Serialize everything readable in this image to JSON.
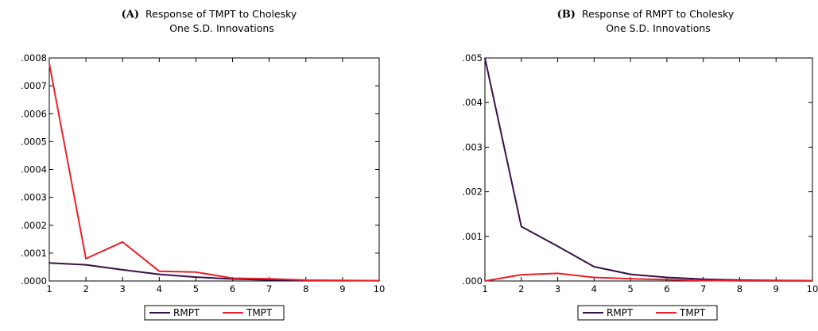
{
  "chart_data": [
    {
      "type": "line",
      "panel_label": "(A)",
      "title_line1": "Response of TMPT to Cholesky",
      "title_line2": "One S.D. Innovations",
      "x": [
        1,
        2,
        3,
        4,
        5,
        6,
        7,
        8,
        9,
        10
      ],
      "x_ticks": [
        "1",
        "2",
        "3",
        "4",
        "5",
        "6",
        "7",
        "8",
        "9",
        "10"
      ],
      "ylim": [
        0,
        0.0008
      ],
      "y_ticks": [
        ".0000",
        ".0001",
        ".0002",
        ".0003",
        ".0004",
        ".0005",
        ".0006",
        ".0007",
        ".0008"
      ],
      "series": [
        {
          "name": "RMPT",
          "color": "#3a0f4a",
          "values": [
            6.5e-05,
            5.8e-05,
            4e-05,
            2.4e-05,
            1.4e-05,
            7e-06,
            4e-06,
            2e-06,
            1e-06,
            1e-06
          ]
        },
        {
          "name": "TMPT",
          "color": "#e8202a",
          "values": [
            0.00078,
            8e-05,
            0.00014,
            3.5e-05,
            3.2e-05,
            1e-05,
            8e-06,
            3e-06,
            2e-06,
            1e-06
          ]
        }
      ],
      "legend": [
        "RMPT",
        "TMPT"
      ]
    },
    {
      "type": "line",
      "panel_label": "(B)",
      "title_line1": "Response of RMPT to Cholesky",
      "title_line2": "One S.D. Innovations",
      "x": [
        1,
        2,
        3,
        4,
        5,
        6,
        7,
        8,
        9,
        10
      ],
      "x_ticks": [
        "1",
        "2",
        "3",
        "4",
        "5",
        "6",
        "7",
        "8",
        "9",
        "10"
      ],
      "ylim": [
        0,
        0.005
      ],
      "y_ticks": [
        ".000",
        ".001",
        ".002",
        ".003",
        ".004",
        ".005"
      ],
      "series": [
        {
          "name": "RMPT",
          "color": "#3a0f4a",
          "values": [
            0.005,
            0.00122,
            0.00078,
            0.00032,
            0.00015,
            8e-05,
            4e-05,
            2e-05,
            1e-05,
            5e-06
          ]
        },
        {
          "name": "TMPT",
          "color": "#e8202a",
          "values": [
            0.0,
            0.00014,
            0.00017,
            8e-05,
            5e-05,
            3e-05,
            1e-05,
            5e-06,
            2e-06,
            1e-06
          ]
        }
      ],
      "legend": [
        "RMPT",
        "TMPT"
      ]
    }
  ]
}
